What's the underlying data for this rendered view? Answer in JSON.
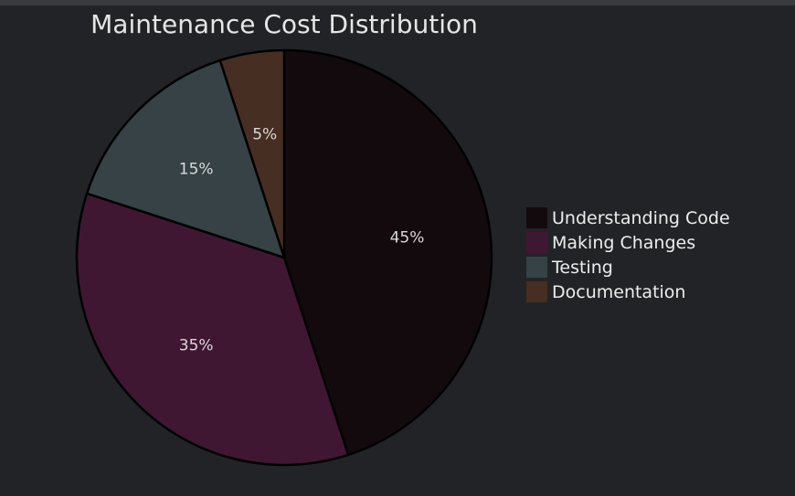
{
  "chart_data": {
    "type": "pie",
    "title": "Maintenance Cost Distribution",
    "categories": [
      "Understanding Code",
      "Making Changes",
      "Testing",
      "Documentation"
    ],
    "values": [
      45,
      35,
      15,
      5
    ],
    "value_labels": [
      "45%",
      "35%",
      "15%",
      "5%"
    ],
    "colors": [
      "#130a0e",
      "#401733",
      "#364246",
      "#462e22"
    ],
    "start_angle": "top (12 o'clock)",
    "direction": "clockwise",
    "legend": "right"
  }
}
